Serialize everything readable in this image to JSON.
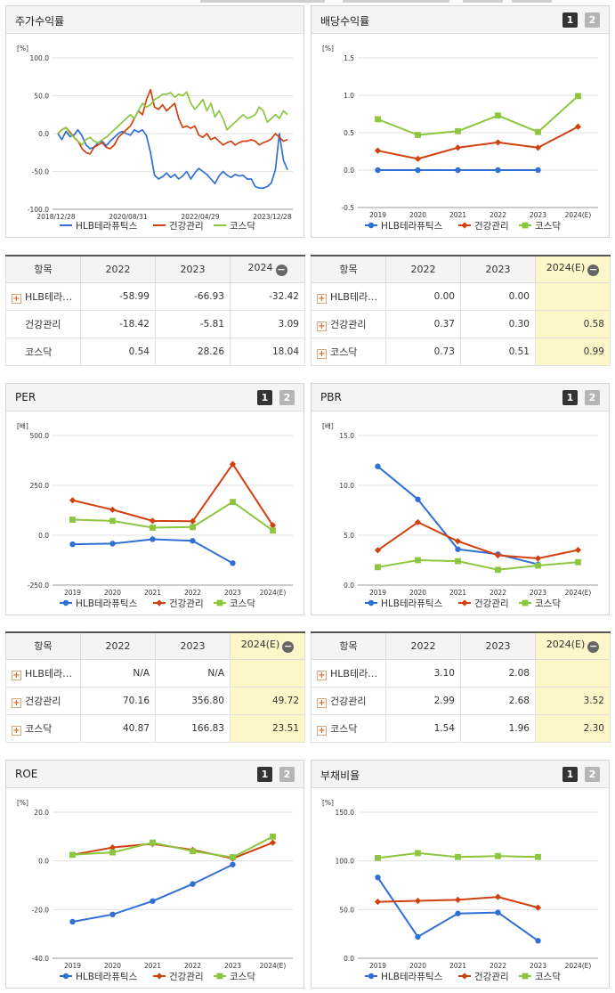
{
  "colors": {
    "blue": "#2f6fd6",
    "red": "#d1400f",
    "green": "#8cc63f",
    "grid": "#e2e2e2",
    "axis": "#999999"
  },
  "legend": [
    "HLB테라퓨틱스",
    "건강관리",
    "코스닥"
  ],
  "chart_data": [
    {
      "id": "stock",
      "title": "주가수익률",
      "type": "line",
      "unit": "[%]",
      "x_ticks": [
        "2018/12/28",
        "2020/08/31",
        "2022/04/29",
        "2023/12/28"
      ],
      "y_ticks": [
        "100.0",
        "50.0",
        "0.0",
        "-50.0",
        "-100.0"
      ],
      "ylim": [
        -100,
        100
      ],
      "series": [
        {
          "name": "HLB테라퓨틱스",
          "values": [
            0,
            -8,
            3,
            -4,
            -2,
            5,
            -3,
            -15,
            -20,
            -18,
            -12,
            -10,
            -16,
            -10,
            -5,
            0,
            3,
            0,
            -2,
            5,
            2,
            5,
            -3,
            -25,
            -55,
            -60,
            -57,
            -52,
            -58,
            -54,
            -60,
            -56,
            -50,
            -60,
            -52,
            -46,
            -50,
            -54,
            -60,
            -66,
            -56,
            -50,
            -55,
            -58,
            -54,
            -56,
            -55,
            -60,
            -60,
            -70,
            -72,
            -72,
            -70,
            -65,
            -48,
            0,
            -35,
            -48
          ]
        },
        {
          "name": "건강관리",
          "values": [
            0,
            5,
            8,
            2,
            -5,
            -10,
            -20,
            -25,
            -27,
            -18,
            -15,
            -12,
            -18,
            -20,
            -15,
            -5,
            0,
            5,
            10,
            20,
            30,
            25,
            45,
            58,
            35,
            32,
            38,
            30,
            35,
            40,
            20,
            8,
            10,
            7,
            10,
            -2,
            -5,
            0,
            -8,
            -5,
            -10,
            -15,
            -12,
            -10,
            -15,
            -12,
            -10,
            -10,
            -8,
            -10,
            -15,
            -12,
            -10,
            -7,
            0,
            -5,
            -10,
            -8
          ]
        },
        {
          "name": "코스닥",
          "values": [
            0,
            5,
            8,
            0,
            -5,
            -10,
            -15,
            -8,
            -5,
            -10,
            -12,
            -8,
            -5,
            0,
            5,
            10,
            15,
            20,
            25,
            20,
            30,
            40,
            35,
            38,
            45,
            48,
            52,
            52,
            54,
            48,
            52,
            50,
            55,
            40,
            32,
            38,
            45,
            30,
            40,
            22,
            30,
            20,
            5,
            10,
            15,
            20,
            25,
            20,
            22,
            25,
            35,
            30,
            15,
            20,
            25,
            20,
            30,
            25
          ]
        }
      ]
    },
    {
      "id": "dividend",
      "title": "배당수익률",
      "type": "line",
      "unit": "[%]",
      "categories": [
        "2019",
        "2020",
        "2021",
        "2022",
        "2023",
        "2024(E)"
      ],
      "y_ticks": [
        "1.5",
        "1.0",
        "0.5",
        "0.0",
        "-0.5"
      ],
      "ylim": [
        -0.5,
        1.5
      ],
      "series": [
        {
          "name": "HLB테라퓨틱스",
          "values": [
            0,
            0,
            0,
            0.0,
            0.0,
            null
          ]
        },
        {
          "name": "건강관리",
          "values": [
            0.26,
            0.15,
            0.3,
            0.37,
            0.3,
            0.58
          ]
        },
        {
          "name": "코스닥",
          "values": [
            0.68,
            0.47,
            0.52,
            0.73,
            0.51,
            0.99
          ]
        }
      ]
    },
    {
      "id": "per",
      "title": "PER",
      "type": "line",
      "unit": "[배]",
      "categories": [
        "2019",
        "2020",
        "2021",
        "2022",
        "2023",
        "2024(E)"
      ],
      "y_ticks": [
        "500.0",
        "250.0",
        "0.0",
        "-250.0"
      ],
      "ylim": [
        -250,
        500
      ],
      "series": [
        {
          "name": "HLB테라퓨틱스",
          "values": [
            -45,
            -42,
            -20,
            -28,
            -140,
            null
          ]
        },
        {
          "name": "건강관리",
          "values": [
            175,
            128,
            72,
            70.16,
            356.8,
            49.72
          ]
        },
        {
          "name": "코스닥",
          "values": [
            78,
            72,
            38,
            40.87,
            166.83,
            23.51
          ]
        }
      ]
    },
    {
      "id": "pbr",
      "title": "PBR",
      "type": "line",
      "unit": "[배]",
      "categories": [
        "2019",
        "2020",
        "2021",
        "2022",
        "2023",
        "2024(E)"
      ],
      "y_ticks": [
        "15.0",
        "10.0",
        "5.0",
        "0.0"
      ],
      "ylim": [
        0,
        15
      ],
      "series": [
        {
          "name": "HLB테라퓨틱스",
          "values": [
            11.9,
            8.6,
            3.6,
            3.1,
            2.08,
            null
          ]
        },
        {
          "name": "건강관리",
          "values": [
            3.5,
            6.3,
            4.4,
            2.99,
            2.68,
            3.52
          ]
        },
        {
          "name": "코스닥",
          "values": [
            1.8,
            2.5,
            2.4,
            1.54,
            1.96,
            2.3
          ]
        }
      ]
    },
    {
      "id": "roe",
      "title": "ROE",
      "type": "line",
      "unit": "[%]",
      "categories": [
        "2019",
        "2020",
        "2021",
        "2022",
        "2023",
        "2024(E)"
      ],
      "y_ticks": [
        "20.0",
        "0.0",
        "-20.0",
        "-40.0"
      ],
      "ylim": [
        -40,
        20
      ],
      "series": [
        {
          "name": "HLB테라퓨틱스",
          "values": [
            -25,
            -22,
            -16.5,
            -9.5,
            -1.5,
            null
          ]
        },
        {
          "name": "건강관리",
          "values": [
            2.5,
            5.5,
            7,
            4.5,
            1,
            7.5
          ]
        },
        {
          "name": "코스닥",
          "values": [
            2.5,
            3.5,
            7.5,
            4,
            1.5,
            10
          ]
        }
      ]
    },
    {
      "id": "debt",
      "title": "부채비율",
      "type": "line",
      "unit": "[%]",
      "categories": [
        "2019",
        "2020",
        "2021",
        "2022",
        "2023",
        "2024(E)"
      ],
      "y_ticks": [
        "150.0",
        "100.0",
        "50.0",
        "0.0"
      ],
      "ylim": [
        0,
        150
      ],
      "series": [
        {
          "name": "HLB테라퓨틱스",
          "values": [
            83,
            22,
            46,
            47,
            18,
            null
          ]
        },
        {
          "name": "건강관리",
          "values": [
            58,
            59,
            60,
            63,
            52,
            null
          ]
        },
        {
          "name": "코스닥",
          "values": [
            103,
            108,
            104,
            105,
            104,
            null
          ]
        }
      ]
    }
  ],
  "tables": [
    {
      "id": "t_stock",
      "headers": [
        "항목",
        "2022",
        "2023",
        "2024"
      ],
      "rows": [
        {
          "name": "HLB테라…",
          "plus": true,
          "values": [
            "-58.99",
            "-66.93",
            "-32.42"
          ]
        },
        {
          "name": "건강관리",
          "plus": false,
          "values": [
            "-18.42",
            "-5.81",
            "3.09"
          ]
        },
        {
          "name": "코스닥",
          "plus": false,
          "values": [
            "0.54",
            "28.26",
            "18.04"
          ]
        }
      ]
    },
    {
      "id": "t_div",
      "headers": [
        "항목",
        "2022",
        "2023",
        "2024(E)"
      ],
      "rows": [
        {
          "name": "HLB테라…",
          "plus": true,
          "values": [
            "0.00",
            "0.00",
            ""
          ]
        },
        {
          "name": "건강관리",
          "plus": true,
          "values": [
            "0.37",
            "0.30",
            "0.58"
          ]
        },
        {
          "name": "코스닥",
          "plus": true,
          "values": [
            "0.73",
            "0.51",
            "0.99"
          ]
        }
      ]
    },
    {
      "id": "t_per",
      "headers": [
        "항목",
        "2022",
        "2023",
        "2024(E)"
      ],
      "rows": [
        {
          "name": "HLB테라…",
          "plus": true,
          "values": [
            "N/A",
            "N/A",
            ""
          ]
        },
        {
          "name": "건강관리",
          "plus": true,
          "values": [
            "70.16",
            "356.80",
            "49.72"
          ]
        },
        {
          "name": "코스닥",
          "plus": true,
          "values": [
            "40.87",
            "166.83",
            "23.51"
          ]
        }
      ]
    },
    {
      "id": "t_pbr",
      "headers": [
        "항목",
        "2022",
        "2023",
        "2024(E)"
      ],
      "rows": [
        {
          "name": "HLB테라…",
          "plus": true,
          "values": [
            "3.10",
            "2.08",
            ""
          ]
        },
        {
          "name": "건강관리",
          "plus": true,
          "values": [
            "2.99",
            "2.68",
            "3.52"
          ]
        },
        {
          "name": "코스닥",
          "plus": true,
          "values": [
            "1.54",
            "1.96",
            "2.30"
          ]
        }
      ]
    }
  ],
  "buttons": {
    "one": "1",
    "two": "2",
    "minus": "−"
  }
}
